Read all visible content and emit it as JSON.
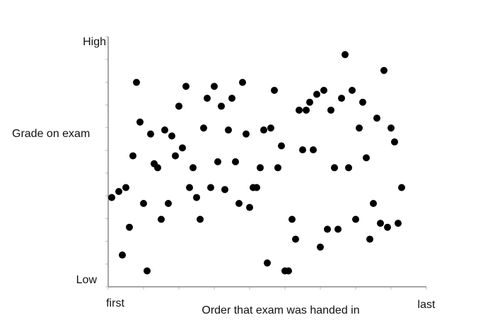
{
  "chart_data": {
    "type": "scatter",
    "title": "",
    "xlabel": "Order that exam was handed in",
    "ylabel": "Grade on exam",
    "x_tick_labels": {
      "start": "first",
      "end": "last"
    },
    "y_tick_labels": {
      "top": "High",
      "bottom": "Low"
    },
    "xlim": [
      0,
      90
    ],
    "ylim": [
      0,
      63
    ],
    "grid": false,
    "legend": "none",
    "marker_color": "#000000",
    "series": [
      {
        "points": [
          [
            1,
            22.5
          ],
          [
            3,
            24
          ],
          [
            4,
            8
          ],
          [
            5,
            25
          ],
          [
            6,
            15
          ],
          [
            7,
            33
          ],
          [
            8,
            51.5
          ],
          [
            9,
            41.5
          ],
          [
            10,
            21
          ],
          [
            11,
            4
          ],
          [
            12,
            38.5
          ],
          [
            13,
            31
          ],
          [
            14,
            30
          ],
          [
            15,
            17
          ],
          [
            16,
            39.5
          ],
          [
            17,
            21
          ],
          [
            18,
            38
          ],
          [
            19,
            33
          ],
          [
            20,
            45.5
          ],
          [
            21,
            35
          ],
          [
            22,
            50.5
          ],
          [
            23,
            25
          ],
          [
            24,
            30
          ],
          [
            25,
            22.5
          ],
          [
            26,
            17
          ],
          [
            27,
            40
          ],
          [
            28,
            47.5
          ],
          [
            29,
            25
          ],
          [
            30,
            50.5
          ],
          [
            31,
            31.5
          ],
          [
            32,
            45.5
          ],
          [
            33,
            24.5
          ],
          [
            34,
            39.5
          ],
          [
            35,
            47.5
          ],
          [
            36,
            31.5
          ],
          [
            37,
            21
          ],
          [
            38,
            51.5
          ],
          [
            39,
            38.5
          ],
          [
            40,
            20
          ],
          [
            41,
            25
          ],
          [
            42,
            25
          ],
          [
            43,
            30
          ],
          [
            44,
            39.5
          ],
          [
            45,
            6
          ],
          [
            46,
            40
          ],
          [
            47,
            49.5
          ],
          [
            48,
            30
          ],
          [
            49,
            35.5
          ],
          [
            50,
            4
          ],
          [
            51,
            4
          ],
          [
            52,
            17
          ],
          [
            53,
            12
          ],
          [
            54,
            44.5
          ],
          [
            55,
            34.5
          ],
          [
            56,
            44.5
          ],
          [
            57,
            46.5
          ],
          [
            58,
            34.5
          ],
          [
            59,
            48.5
          ],
          [
            60,
            10
          ],
          [
            61,
            49.5
          ],
          [
            62,
            14.5
          ],
          [
            63,
            44.5
          ],
          [
            64,
            30
          ],
          [
            65,
            14.5
          ],
          [
            66,
            47.5
          ],
          [
            67,
            58.5
          ],
          [
            68,
            30
          ],
          [
            69,
            49.5
          ],
          [
            70,
            17
          ],
          [
            71,
            40
          ],
          [
            72,
            46.5
          ],
          [
            73,
            32.5
          ],
          [
            74,
            12
          ],
          [
            75,
            21
          ],
          [
            76,
            42.5
          ],
          [
            77,
            16
          ],
          [
            78,
            54.5
          ],
          [
            79,
            15
          ],
          [
            80,
            40
          ],
          [
            81,
            36.5
          ],
          [
            82,
            16
          ],
          [
            83,
            25
          ]
        ]
      }
    ]
  }
}
